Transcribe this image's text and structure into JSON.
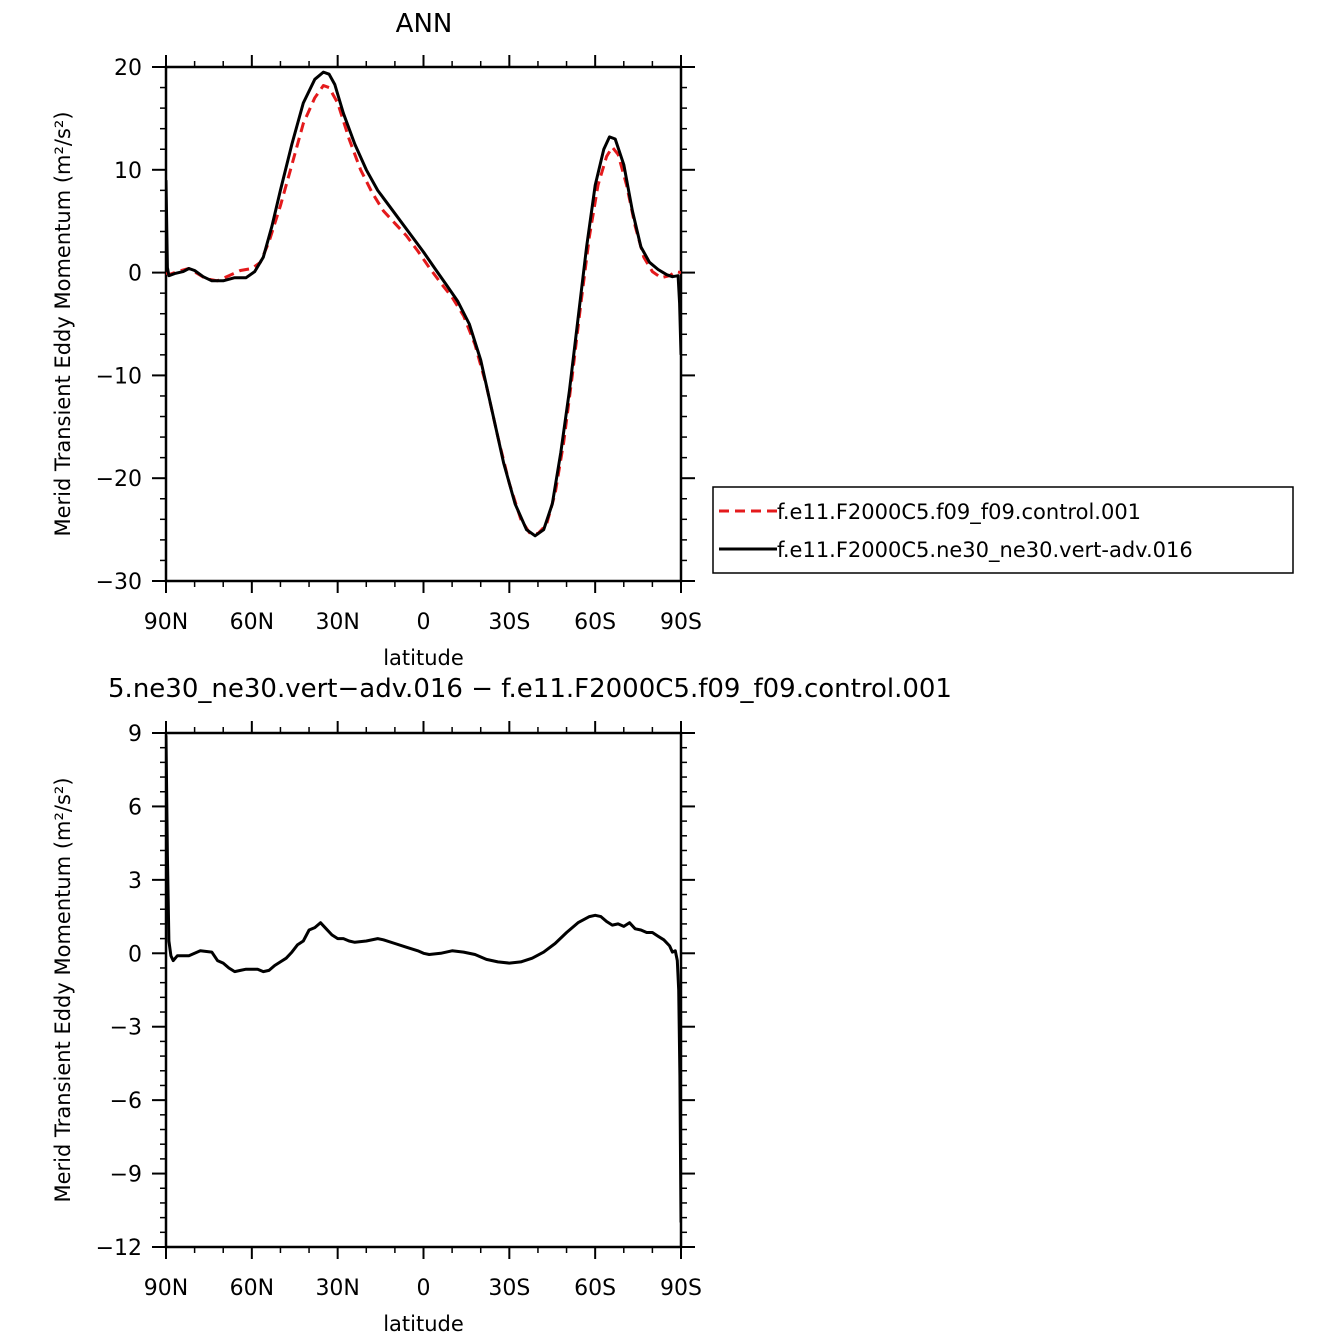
{
  "chart_data": [
    {
      "type": "line",
      "title": "ANN",
      "xlabel": "latitude",
      "ylabel": "Merid Transient Eddy Momentum  (m²/s²)",
      "xlim": [
        90,
        -90
      ],
      "ylim": [
        -30,
        20
      ],
      "x_ticks": [
        90,
        60,
        30,
        0,
        -30,
        -60,
        -90
      ],
      "x_tick_labels": [
        "90N",
        "60N",
        "30N",
        "0",
        "30S",
        "60S",
        "90S"
      ],
      "y_ticks": [
        20,
        10,
        0,
        -10,
        -20,
        -30
      ],
      "y_tick_labels": [
        "20",
        "10",
        "0",
        "−10",
        "−20",
        "−30"
      ],
      "legend_position": "right",
      "series": [
        {
          "name": "f.e11.F2000C5.f09_f09.control.001",
          "color": "#e41a1c",
          "dash": "dashed",
          "points": [
            [
              90,
              0
            ],
            [
              89,
              -0.2
            ],
            [
              86,
              0.1
            ],
            [
              82,
              0.4
            ],
            [
              79,
              -0.1
            ],
            [
              76,
              -0.6
            ],
            [
              72,
              -0.8
            ],
            [
              68,
              -0.3
            ],
            [
              64,
              0.2
            ],
            [
              60,
              0.4
            ],
            [
              57,
              1.0
            ],
            [
              54,
              3.0
            ],
            [
              50,
              6.5
            ],
            [
              46,
              10.5
            ],
            [
              42,
              14.5
            ],
            [
              38,
              17.0
            ],
            [
              35,
              18.2
            ],
            [
              33,
              18.0
            ],
            [
              30,
              16.5
            ],
            [
              26,
              13.0
            ],
            [
              22,
              10.0
            ],
            [
              18,
              7.8
            ],
            [
              14,
              6.0
            ],
            [
              10,
              4.8
            ],
            [
              6,
              3.6
            ],
            [
              2,
              2.1
            ],
            [
              -2,
              0.5
            ],
            [
              -6,
              -1.0
            ],
            [
              -10,
              -2.4
            ],
            [
              -14,
              -4.2
            ],
            [
              -18,
              -7.0
            ],
            [
              -22,
              -11.0
            ],
            [
              -26,
              -16.0
            ],
            [
              -30,
              -20.5
            ],
            [
              -34,
              -24.0
            ],
            [
              -37,
              -25.3
            ],
            [
              -40,
              -25.4
            ],
            [
              -43,
              -24.5
            ],
            [
              -46,
              -21.5
            ],
            [
              -49,
              -16.5
            ],
            [
              -52,
              -10.0
            ],
            [
              -55,
              -3.0
            ],
            [
              -58,
              3.5
            ],
            [
              -61,
              8.5
            ],
            [
              -64,
              11.3
            ],
            [
              -66,
              12.2
            ],
            [
              -68,
              11.5
            ],
            [
              -71,
              8.5
            ],
            [
              -74,
              4.5
            ],
            [
              -77,
              1.5
            ],
            [
              -80,
              0.1
            ],
            [
              -83,
              -0.5
            ],
            [
              -86,
              -0.3
            ],
            [
              -88,
              0.1
            ],
            [
              -90,
              0
            ]
          ]
        },
        {
          "name": "f.e11.F2000C5.ne30_ne30.vert-adv.016",
          "color": "#000000",
          "dash": "solid",
          "points": [
            [
              90,
              9.0
            ],
            [
              89.5,
              0.5
            ],
            [
              89,
              -0.3
            ],
            [
              87,
              -0.1
            ],
            [
              84,
              0.1
            ],
            [
              82,
              0.4
            ],
            [
              80,
              0.2
            ],
            [
              77,
              -0.4
            ],
            [
              74,
              -0.8
            ],
            [
              70,
              -0.8
            ],
            [
              66,
              -0.5
            ],
            [
              62,
              -0.5
            ],
            [
              59,
              0.1
            ],
            [
              56,
              1.5
            ],
            [
              53,
              4.5
            ],
            [
              50,
              8.0
            ],
            [
              46,
              12.5
            ],
            [
              42,
              16.5
            ],
            [
              38,
              18.8
            ],
            [
              35,
              19.5
            ],
            [
              33,
              19.3
            ],
            [
              31,
              18.3
            ],
            [
              28,
              15.5
            ],
            [
              24,
              12.5
            ],
            [
              20,
              10.0
            ],
            [
              16,
              8.0
            ],
            [
              12,
              6.5
            ],
            [
              8,
              5.0
            ],
            [
              4,
              3.5
            ],
            [
              0,
              2.0
            ],
            [
              -4,
              0.4
            ],
            [
              -8,
              -1.2
            ],
            [
              -12,
              -2.8
            ],
            [
              -16,
              -5.0
            ],
            [
              -20,
              -8.5
            ],
            [
              -24,
              -13.5
            ],
            [
              -28,
              -18.5
            ],
            [
              -32,
              -22.5
            ],
            [
              -36,
              -25.0
            ],
            [
              -39,
              -25.6
            ],
            [
              -42,
              -25.0
            ],
            [
              -45,
              -22.5
            ],
            [
              -48,
              -17.5
            ],
            [
              -51,
              -11.5
            ],
            [
              -54,
              -4.5
            ],
            [
              -57,
              2.5
            ],
            [
              -60,
              8.5
            ],
            [
              -63,
              12.0
            ],
            [
              -65,
              13.2
            ],
            [
              -67,
              13.0
            ],
            [
              -70,
              10.5
            ],
            [
              -73,
              6.0
            ],
            [
              -76,
              2.5
            ],
            [
              -79,
              1.0
            ],
            [
              -82,
              0.3
            ],
            [
              -85,
              -0.2
            ],
            [
              -87,
              -0.4
            ],
            [
              -89,
              -0.3
            ],
            [
              -89.5,
              -3.0
            ],
            [
              -90,
              -8.0
            ]
          ]
        }
      ]
    },
    {
      "type": "line",
      "title": "5.ne30_ne30.vert−adv.016 − f.e11.F2000C5.f09_f09.control.001",
      "xlabel": "latitude",
      "ylabel": "Merid Transient Eddy Momentum  (m²/s²)",
      "xlim": [
        90,
        -90
      ],
      "ylim": [
        -12,
        9
      ],
      "x_ticks": [
        90,
        60,
        30,
        0,
        -30,
        -60,
        -90
      ],
      "x_tick_labels": [
        "90N",
        "60N",
        "30N",
        "0",
        "30S",
        "60S",
        "90S"
      ],
      "y_ticks": [
        9,
        6,
        3,
        0,
        -3,
        -6,
        -9,
        -12
      ],
      "y_tick_labels": [
        "9",
        "6",
        "3",
        "0",
        "−3",
        "−6",
        "−9",
        "−12"
      ],
      "series": [
        {
          "color": "#000000",
          "dash": "solid",
          "points": [
            [
              90,
              8.9
            ],
            [
              89.5,
              4.0
            ],
            [
              89,
              0.5
            ],
            [
              88.3,
              -0.1
            ],
            [
              87.5,
              -0.3
            ],
            [
              86,
              -0.1
            ],
            [
              84,
              -0.1
            ],
            [
              82,
              -0.1
            ],
            [
              80,
              0.0
            ],
            [
              78,
              0.1
            ],
            [
              74,
              0.05
            ],
            [
              72,
              -0.3
            ],
            [
              70,
              -0.4
            ],
            [
              68,
              -0.6
            ],
            [
              66,
              -0.75
            ],
            [
              64,
              -0.7
            ],
            [
              62,
              -0.65
            ],
            [
              58,
              -0.65
            ],
            [
              56,
              -0.75
            ],
            [
              54,
              -0.7
            ],
            [
              52,
              -0.5
            ],
            [
              50,
              -0.35
            ],
            [
              48,
              -0.2
            ],
            [
              46,
              0.05
            ],
            [
              44,
              0.35
            ],
            [
              42,
              0.5
            ],
            [
              40,
              0.95
            ],
            [
              38,
              1.05
            ],
            [
              36,
              1.25
            ],
            [
              34,
              1.0
            ],
            [
              32,
              0.75
            ],
            [
              30,
              0.6
            ],
            [
              28,
              0.6
            ],
            [
              26,
              0.5
            ],
            [
              24,
              0.45
            ],
            [
              20,
              0.5
            ],
            [
              16,
              0.6
            ],
            [
              14,
              0.55
            ],
            [
              10,
              0.4
            ],
            [
              6,
              0.25
            ],
            [
              2,
              0.1
            ],
            [
              0,
              0.0
            ],
            [
              -2,
              -0.05
            ],
            [
              -6,
              0.0
            ],
            [
              -10,
              0.1
            ],
            [
              -14,
              0.05
            ],
            [
              -18,
              -0.05
            ],
            [
              -22,
              -0.25
            ],
            [
              -26,
              -0.35
            ],
            [
              -30,
              -0.4
            ],
            [
              -34,
              -0.35
            ],
            [
              -38,
              -0.2
            ],
            [
              -42,
              0.05
            ],
            [
              -46,
              0.4
            ],
            [
              -50,
              0.85
            ],
            [
              -54,
              1.25
            ],
            [
              -58,
              1.5
            ],
            [
              -60,
              1.55
            ],
            [
              -62,
              1.5
            ],
            [
              -64,
              1.3
            ],
            [
              -66,
              1.15
            ],
            [
              -68,
              1.2
            ],
            [
              -70,
              1.1
            ],
            [
              -72,
              1.25
            ],
            [
              -74,
              1.0
            ],
            [
              -76,
              0.95
            ],
            [
              -78,
              0.85
            ],
            [
              -80,
              0.85
            ],
            [
              -82,
              0.7
            ],
            [
              -84,
              0.55
            ],
            [
              -86,
              0.3
            ],
            [
              -87,
              0.05
            ],
            [
              -88,
              0.1
            ],
            [
              -88.7,
              -0.3
            ],
            [
              -89.2,
              -1.5
            ],
            [
              -89.6,
              -5.0
            ],
            [
              -90,
              -11.0
            ]
          ]
        }
      ]
    }
  ]
}
